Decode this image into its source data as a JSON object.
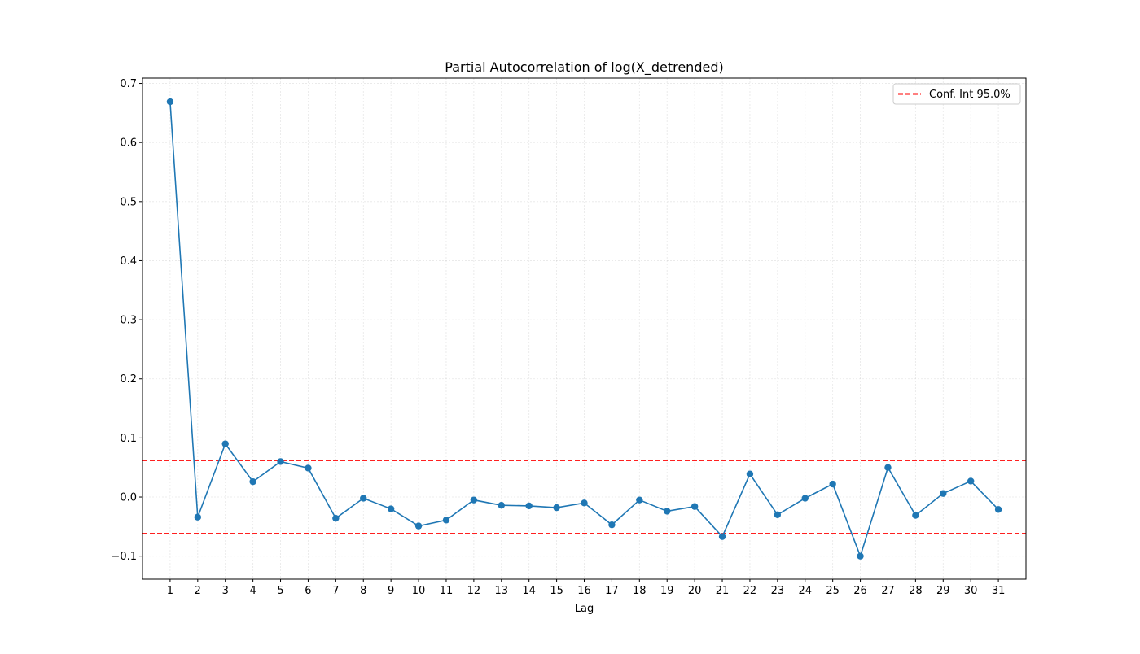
{
  "chart_data": {
    "type": "line",
    "title": "Partial Autocorrelation of log(X_detrended)",
    "xlabel": "Lag",
    "ylabel": "",
    "x": [
      1,
      2,
      3,
      4,
      5,
      6,
      7,
      8,
      9,
      10,
      11,
      12,
      13,
      14,
      15,
      16,
      17,
      18,
      19,
      20,
      21,
      22,
      23,
      24,
      25,
      26,
      27,
      28,
      29,
      30,
      31
    ],
    "series": [
      {
        "values": [
          0.669,
          -0.034,
          0.09,
          0.026,
          0.06,
          0.049,
          -0.036,
          -0.002,
          -0.02,
          -0.049,
          -0.039,
          -0.005,
          -0.014,
          -0.015,
          -0.018,
          -0.01,
          -0.047,
          -0.005,
          -0.024,
          -0.016,
          -0.067,
          0.039,
          -0.03,
          -0.002,
          0.022,
          -0.1,
          0.05,
          -0.031,
          0.006,
          0.027,
          -0.021
        ],
        "color": "#1f77b4",
        "marker": "circle"
      }
    ],
    "conf_int": {
      "label": "Conf. Int 95.0%",
      "upper": 0.062,
      "lower": -0.062,
      "color": "#ff0000",
      "linestyle": "dashed"
    },
    "xlim": [
      0,
      32
    ],
    "ylim": [
      -0.139,
      0.709
    ],
    "yticks": [
      -0.1,
      0.0,
      0.1,
      0.2,
      0.3,
      0.4,
      0.5,
      0.6,
      0.7
    ],
    "ytick_labels": [
      "−0.1",
      "0.0",
      "0.1",
      "0.2",
      "0.3",
      "0.4",
      "0.5",
      "0.6",
      "0.7"
    ],
    "xtick_labels": [
      "1",
      "2",
      "3",
      "4",
      "5",
      "6",
      "7",
      "8",
      "9",
      "10",
      "11",
      "12",
      "13",
      "14",
      "15",
      "16",
      "17",
      "18",
      "19",
      "20",
      "21",
      "22",
      "23",
      "24",
      "25",
      "26",
      "27",
      "28",
      "29",
      "30",
      "31"
    ],
    "grid": true,
    "legend_position": "top-right"
  }
}
